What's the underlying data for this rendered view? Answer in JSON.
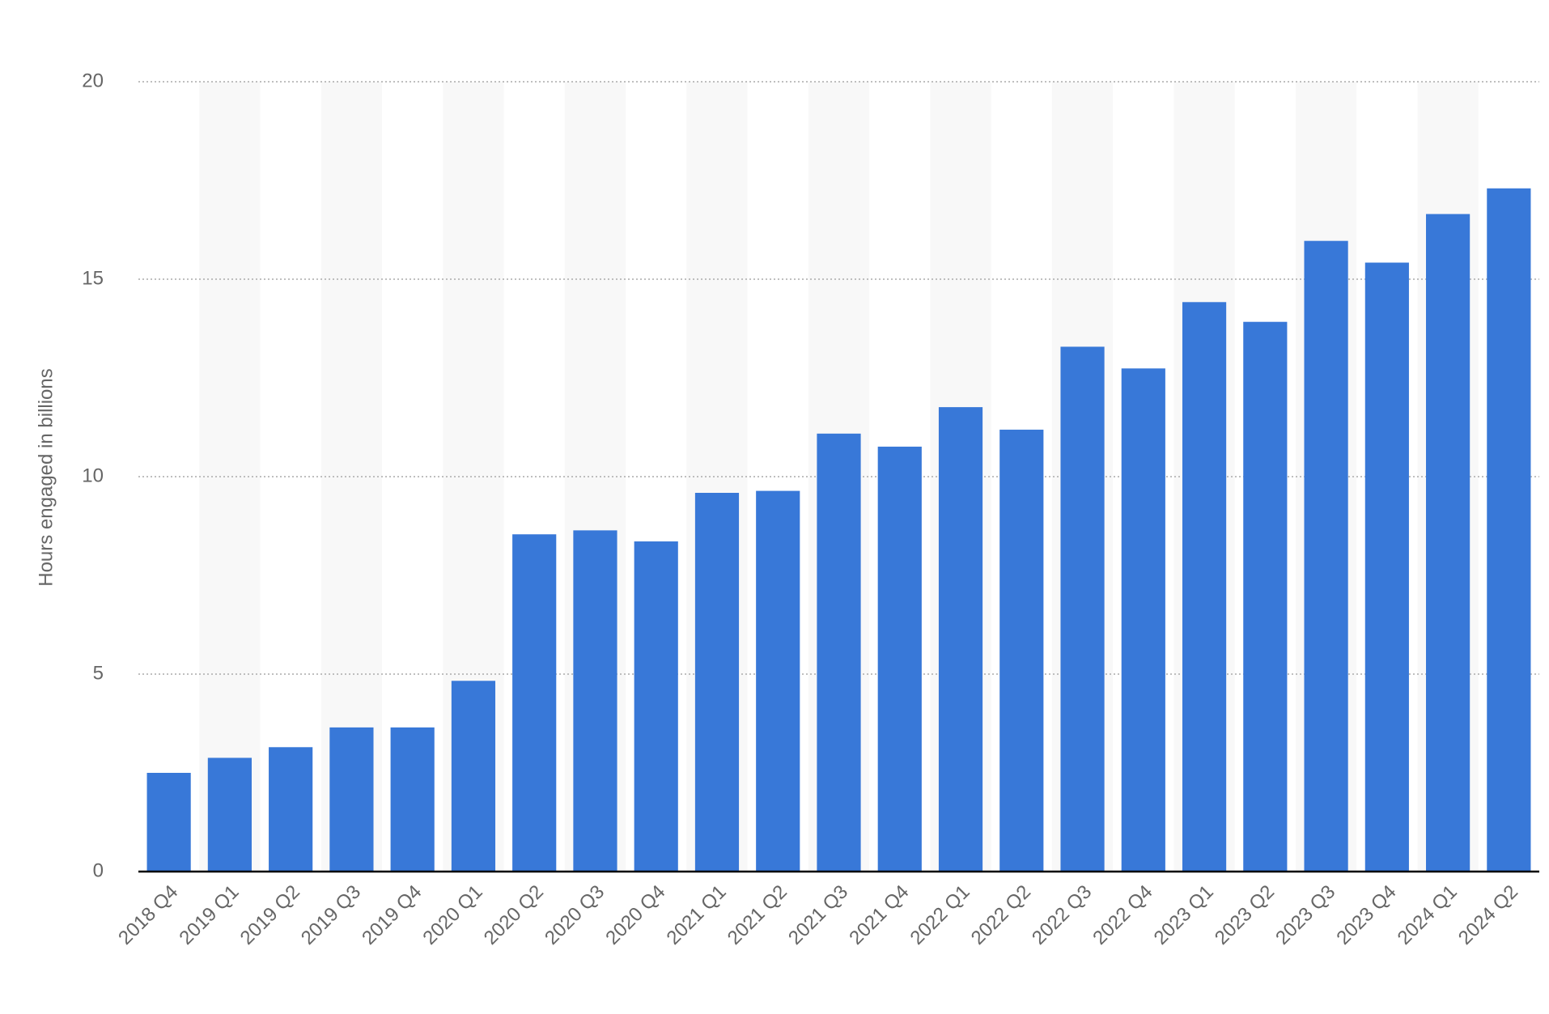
{
  "chart_data": {
    "type": "bar",
    "y_label": "Hours engaged in billions",
    "categories": [
      "2018 Q4",
      "2019 Q1",
      "2019 Q2",
      "2019 Q3",
      "2019 Q4",
      "2020 Q1",
      "2020 Q2",
      "2020 Q3",
      "2020 Q4",
      "2021 Q1",
      "2021 Q2",
      "2021 Q3",
      "2021 Q4",
      "2022 Q1",
      "2022 Q2",
      "2022 Q3",
      "2022 Q4",
      "2023 Q1",
      "2023 Q2",
      "2023 Q3",
      "2023 Q4",
      "2024 Q1",
      "2024 Q2"
    ],
    "values": [
      2.5,
      2.88,
      3.15,
      3.65,
      3.65,
      4.83,
      8.54,
      8.64,
      8.36,
      9.59,
      9.64,
      11.09,
      10.76,
      11.76,
      11.19,
      13.29,
      12.74,
      14.42,
      13.92,
      15.97,
      15.42,
      16.65,
      17.3
    ],
    "color": "#3878d8",
    "ylim": [
      0,
      20
    ],
    "yticks": [
      0,
      5,
      10,
      15,
      20
    ],
    "grid": true
  }
}
